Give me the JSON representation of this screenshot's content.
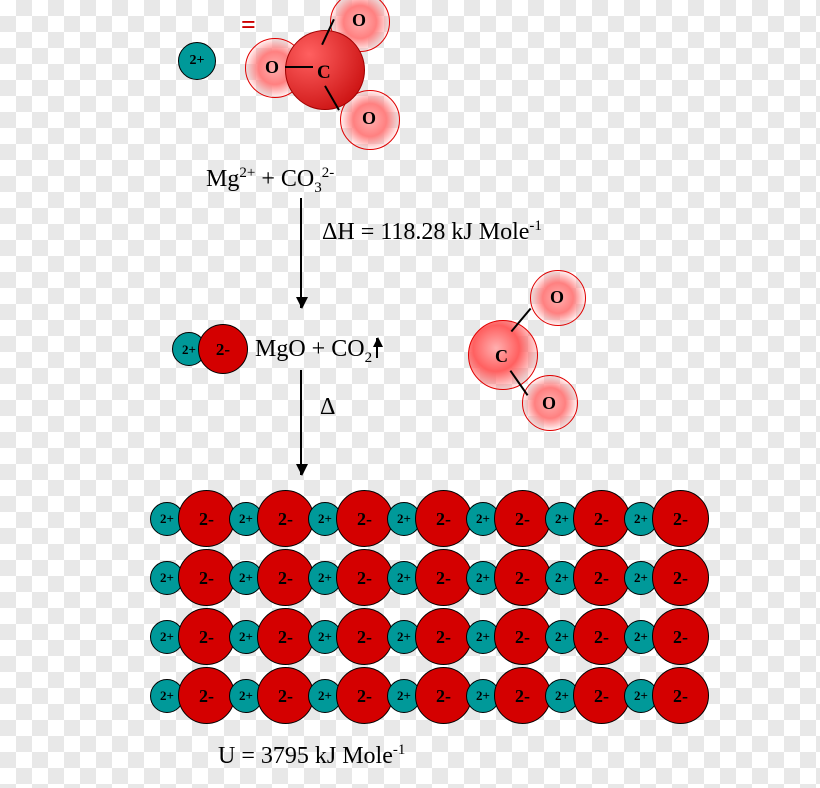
{
  "colors": {
    "cation": "#009999",
    "anion": "#d40000",
    "blob_edge": "#e00000",
    "text": "#000000",
    "eq": "#cc0000"
  },
  "top": {
    "eq_symbol": "=",
    "cation_label": "2+",
    "carbonate": {
      "center": "C",
      "o1": "O",
      "o2": "O",
      "o3": "O"
    }
  },
  "eq1": {
    "mg": "Mg",
    "mg_charge": "2+",
    "plus": " + ",
    "co": "CO",
    "co_sub": "3",
    "co_charge": "2-"
  },
  "dH": {
    "label": "ΔH = ",
    "value": "118.28",
    "unit": " kJ Mole",
    "exp": "-1"
  },
  "mid": {
    "mgo_c": "2+",
    "mgo_a": "2-",
    "line": {
      "mgo": "MgO",
      "plus": " +  ",
      "co": "CO",
      "co_sub": "2"
    },
    "co2": {
      "center": "C",
      "o1": "O",
      "o2": "O"
    }
  },
  "delta": "Δ",
  "lattice": {
    "cols": 7,
    "rows": 4,
    "cation": "2+",
    "anion": "2-"
  },
  "U": {
    "label": "U = ",
    "value": "3795",
    "unit": " kJ Mole",
    "exp": "-1"
  }
}
